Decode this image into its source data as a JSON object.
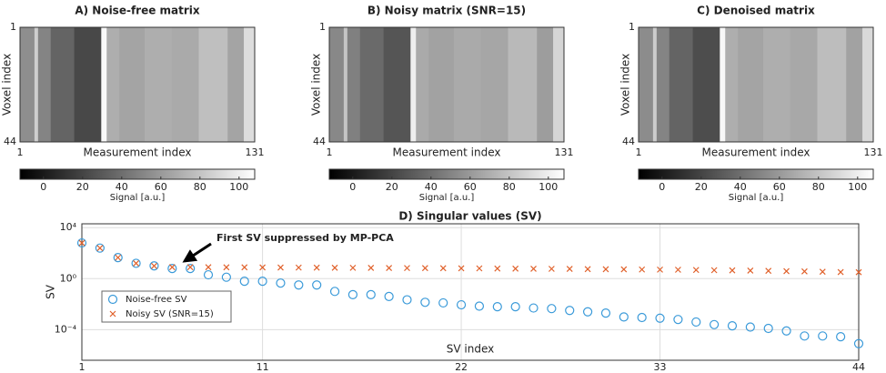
{
  "chart_data": [
    {
      "type": "heatmap",
      "title": "A) Noise-free matrix",
      "xlabel": "Measurement index",
      "ylabel": "Voxel index",
      "xlim": [
        1,
        131
      ],
      "xticks": [
        1,
        131
      ],
      "ylim": [
        1,
        44
      ],
      "yticks": [
        1,
        44
      ],
      "y_reversed": true,
      "x_edges": [
        1,
        9,
        11,
        18,
        31,
        46,
        49,
        56,
        70,
        85,
        100,
        116,
        125,
        131
      ],
      "values": [
        55,
        85,
        50,
        35,
        22,
        105,
        70,
        65,
        70,
        68,
        78,
        65,
        92
      ],
      "clim": [
        -12,
        108
      ],
      "cticks": [
        0,
        20,
        40,
        60,
        80,
        100
      ],
      "colorbar_label": "Signal [a.u.]"
    },
    {
      "type": "heatmap",
      "title": "B) Noisy matrix (SNR=15)",
      "xlabel": "Measurement index",
      "ylabel": "Voxel index",
      "xlim": [
        1,
        131
      ],
      "xticks": [
        1,
        131
      ],
      "ylim": [
        1,
        44
      ],
      "yticks": [
        1,
        44
      ],
      "y_reversed": true,
      "x_edges": [
        1,
        9,
        11,
        18,
        31,
        46,
        49,
        56,
        70,
        85,
        100,
        116,
        125,
        131
      ],
      "values": [
        52,
        80,
        48,
        38,
        28,
        100,
        68,
        64,
        68,
        66,
        75,
        62,
        88
      ],
      "clim": [
        -12,
        108
      ],
      "cticks": [
        0,
        20,
        40,
        60,
        80,
        100
      ],
      "colorbar_label": "Signal [a.u.]"
    },
    {
      "type": "heatmap",
      "title": "C) Denoised matrix",
      "xlabel": "Measurement index",
      "ylabel": "Voxel index",
      "xlim": [
        1,
        131
      ],
      "xticks": [
        1,
        131
      ],
      "ylim": [
        1,
        44
      ],
      "yticks": [
        1,
        44
      ],
      "y_reversed": true,
      "x_edges": [
        1,
        9,
        11,
        18,
        31,
        46,
        49,
        56,
        70,
        85,
        100,
        116,
        125,
        131
      ],
      "values": [
        54,
        84,
        50,
        35,
        24,
        104,
        70,
        65,
        70,
        67,
        77,
        64,
        90
      ],
      "clim": [
        -12,
        108
      ],
      "cticks": [
        0,
        20,
        40,
        60,
        80,
        100
      ],
      "colorbar_label": "Signal [a.u.]"
    },
    {
      "type": "scatter",
      "title": "D) Singular values (SV)",
      "xlabel": "SV index",
      "ylabel": "SV",
      "annotation": "First SV suppressed by MP-PCA",
      "log_y": true,
      "grid": true,
      "legend": "center left",
      "xlim": [
        1,
        44
      ],
      "xticks": [
        1,
        11,
        22,
        33,
        44
      ],
      "ylim": [
        4e-07,
        20000
      ],
      "yticks": [
        {
          "value": 10000,
          "label": "10⁴"
        },
        {
          "value": 1,
          "label": "10⁰"
        },
        {
          "value": 0.0001,
          "label": "10⁻⁴"
        }
      ],
      "x": [
        1,
        2,
        3,
        4,
        5,
        6,
        7,
        8,
        9,
        10,
        11,
        12,
        13,
        14,
        15,
        16,
        17,
        18,
        19,
        20,
        21,
        22,
        23,
        24,
        25,
        26,
        27,
        28,
        29,
        30,
        31,
        32,
        33,
        34,
        35,
        36,
        37,
        38,
        39,
        40,
        41,
        42,
        43,
        44
      ],
      "series": [
        {
          "name": "Noise-free SV",
          "color": "#3a9ad9",
          "marker": "o",
          "values": [
            630,
            250,
            45,
            16,
            10,
            6.3,
            6.3,
            2,
            1.3,
            0.63,
            0.63,
            0.45,
            0.32,
            0.32,
            0.1,
            0.056,
            0.056,
            0.04,
            0.022,
            0.014,
            0.0126,
            0.0089,
            0.007,
            0.0063,
            0.0063,
            0.005,
            0.0045,
            0.0032,
            0.0025,
            0.002,
            0.001,
            0.0009,
            0.0008,
            0.00063,
            0.0004,
            0.00025,
            0.0002,
            0.00016,
            0.000126,
            8e-05,
            3.2e-05,
            3.2e-05,
            2.8e-05,
            8e-06
          ]
        },
        {
          "name": "Noisy SV (SNR=15)",
          "color": "#e0602a",
          "marker": "x",
          "values": [
            630,
            250,
            45,
            16,
            10,
            8,
            8,
            8,
            7.8,
            7.8,
            7.6,
            7.5,
            7.4,
            7.3,
            7.2,
            7.1,
            7,
            6.9,
            6.8,
            6.7,
            6.6,
            6.5,
            6.4,
            6.2,
            6.1,
            6,
            5.9,
            5.8,
            5.6,
            5.5,
            5.4,
            5.2,
            5.1,
            5,
            4.8,
            4.6,
            4.5,
            4.3,
            4.1,
            3.9,
            3.7,
            3.5,
            3.3,
            3.2
          ]
        }
      ]
    }
  ]
}
